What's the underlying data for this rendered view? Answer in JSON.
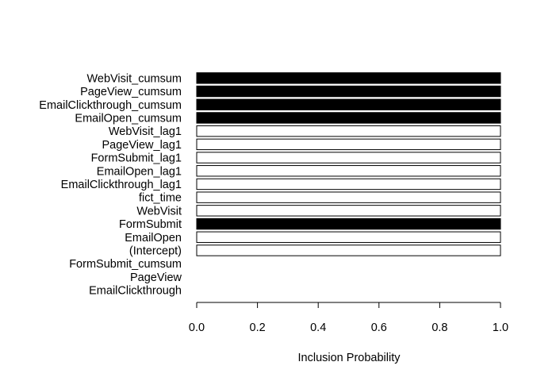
{
  "chart_data": {
    "type": "bar",
    "orientation": "horizontal",
    "title": "",
    "xlabel": "Inclusion Probability",
    "ylabel": "",
    "xlim": [
      0,
      1
    ],
    "xticks": [
      "0.0",
      "0.2",
      "0.4",
      "0.6",
      "0.8",
      "1.0"
    ],
    "xtick_values": [
      0,
      0.2,
      0.4,
      0.6,
      0.8,
      1.0
    ],
    "grid": false,
    "legend": "none",
    "colors": {
      "positive": "#000000",
      "negative": "#ffffff",
      "stroke": "#000000"
    },
    "bars": [
      {
        "label": "WebVisit_cumsum",
        "value": 1.0,
        "fill": "black"
      },
      {
        "label": "PageView_cumsum",
        "value": 1.0,
        "fill": "black"
      },
      {
        "label": "EmailClickthrough_cumsum",
        "value": 1.0,
        "fill": "black"
      },
      {
        "label": "EmailOpen_cumsum",
        "value": 1.0,
        "fill": "black"
      },
      {
        "label": "WebVisit_lag1",
        "value": 1.0,
        "fill": "white"
      },
      {
        "label": "PageView_lag1",
        "value": 1.0,
        "fill": "white"
      },
      {
        "label": "FormSubmit_lag1",
        "value": 1.0,
        "fill": "white"
      },
      {
        "label": "EmailOpen_lag1",
        "value": 1.0,
        "fill": "white"
      },
      {
        "label": "EmailClickthrough_lag1",
        "value": 1.0,
        "fill": "white"
      },
      {
        "label": "fict_time",
        "value": 1.0,
        "fill": "white"
      },
      {
        "label": "WebVisit",
        "value": 1.0,
        "fill": "white"
      },
      {
        "label": "FormSubmit",
        "value": 1.0,
        "fill": "black"
      },
      {
        "label": "EmailOpen",
        "value": 1.0,
        "fill": "white"
      },
      {
        "label": "(Intercept)",
        "value": 1.0,
        "fill": "white"
      },
      {
        "label": "FormSubmit_cumsum",
        "value": 0.0,
        "fill": "white"
      },
      {
        "label": "PageView",
        "value": 0.0,
        "fill": "white"
      },
      {
        "label": "EmailClickthrough",
        "value": 0.0,
        "fill": "white"
      }
    ]
  }
}
